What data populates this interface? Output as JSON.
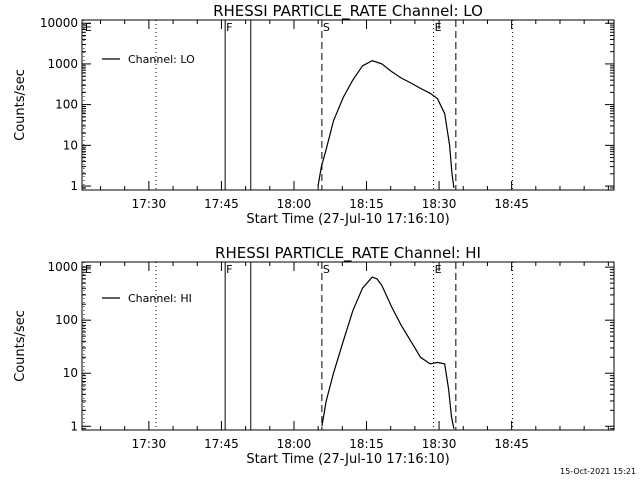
{
  "footer_timestamp": "15-Oct-2021 15:21",
  "chart_data": [
    {
      "type": "line",
      "title": "RHESSI PARTICLE_RATE Channel: LO",
      "xlabel": "Start Time (27-Jul-10 17:16:10)",
      "ylabel": "Counts/sec",
      "x_unit": "minutes since 17:16:10",
      "xlim": [
        0,
        110
      ],
      "ylim": [
        0.8,
        12000
      ],
      "yscale": "log",
      "x_ticks": [
        {
          "t": 13.83,
          "label": "17:30"
        },
        {
          "t": 28.83,
          "label": "17:45"
        },
        {
          "t": 43.83,
          "label": "18:00"
        },
        {
          "t": 58.83,
          "label": "18:15"
        },
        {
          "t": 73.83,
          "label": "18:30"
        },
        {
          "t": 88.83,
          "label": "18:45"
        }
      ],
      "y_ticks": [
        {
          "v": 1,
          "label": "1"
        },
        {
          "v": 10,
          "label": "10"
        },
        {
          "v": 100,
          "label": "100"
        },
        {
          "v": 1000,
          "label": "1000"
        },
        {
          "v": 10000,
          "label": "10000"
        }
      ],
      "legend": {
        "label": "Channel: LO",
        "position": "top-left"
      },
      "markers": [
        {
          "t": 0.4,
          "label": "E",
          "style": "dotted"
        },
        {
          "t": 15.3,
          "label": "",
          "style": "dotted"
        },
        {
          "t": 29.6,
          "label": "F",
          "style": "solid"
        },
        {
          "t": 34.9,
          "label": "",
          "style": "solid"
        },
        {
          "t": 49.6,
          "label": "S",
          "style": "dashed"
        },
        {
          "t": 72.7,
          "label": "E",
          "style": "dotted"
        },
        {
          "t": 77.3,
          "label": "",
          "style": "dashed"
        },
        {
          "t": 89.0,
          "label": "",
          "style": "dotted"
        }
      ],
      "series": [
        {
          "name": "Channel: LO",
          "x": [
            48.8,
            49.5,
            50.5,
            52,
            54,
            56,
            58,
            60,
            62,
            64,
            66,
            68,
            70,
            72,
            73.5,
            75,
            76,
            76.5,
            76.9
          ],
          "values": [
            1,
            3,
            8,
            40,
            150,
            400,
            900,
            1200,
            1000,
            650,
            450,
            340,
            250,
            190,
            140,
            60,
            10,
            2,
            0.9
          ]
        }
      ]
    },
    {
      "type": "line",
      "title": "RHESSI PARTICLE_RATE Channel: HI",
      "xlabel": "Start Time (27-Jul-10 17:16:10)",
      "ylabel": "Counts/sec",
      "x_unit": "minutes since 17:16:10",
      "xlim": [
        0,
        110
      ],
      "ylim": [
        0.85,
        1250
      ],
      "yscale": "log",
      "x_ticks": [
        {
          "t": 13.83,
          "label": "17:30"
        },
        {
          "t": 28.83,
          "label": "17:45"
        },
        {
          "t": 43.83,
          "label": "18:00"
        },
        {
          "t": 58.83,
          "label": "18:15"
        },
        {
          "t": 73.83,
          "label": "18:30"
        },
        {
          "t": 88.83,
          "label": "18:45"
        }
      ],
      "y_ticks": [
        {
          "v": 1,
          "label": "1"
        },
        {
          "v": 10,
          "label": "10"
        },
        {
          "v": 100,
          "label": "100"
        },
        {
          "v": 1000,
          "label": "1000"
        }
      ],
      "legend": {
        "label": "Channel: HI",
        "position": "top-left"
      },
      "markers": [
        {
          "t": 0.4,
          "label": "E",
          "style": "dotted"
        },
        {
          "t": 15.3,
          "label": "",
          "style": "dotted"
        },
        {
          "t": 29.6,
          "label": "F",
          "style": "solid"
        },
        {
          "t": 34.9,
          "label": "",
          "style": "solid"
        },
        {
          "t": 49.6,
          "label": "S",
          "style": "dashed"
        },
        {
          "t": 72.7,
          "label": "E",
          "style": "dotted"
        },
        {
          "t": 77.3,
          "label": "",
          "style": "dashed"
        },
        {
          "t": 89.0,
          "label": "",
          "style": "dotted"
        }
      ],
      "series": [
        {
          "name": "Channel: HI",
          "x": [
            49.6,
            50.5,
            52,
            54,
            56,
            58,
            60,
            61,
            62,
            64,
            66,
            68,
            70,
            72,
            73.5,
            75,
            75.8,
            76.4,
            76.9
          ],
          "values": [
            1,
            3,
            10,
            40,
            150,
            400,
            650,
            600,
            450,
            180,
            80,
            40,
            20,
            15,
            16,
            15,
            5,
            1.5,
            0.9
          ]
        }
      ]
    }
  ]
}
